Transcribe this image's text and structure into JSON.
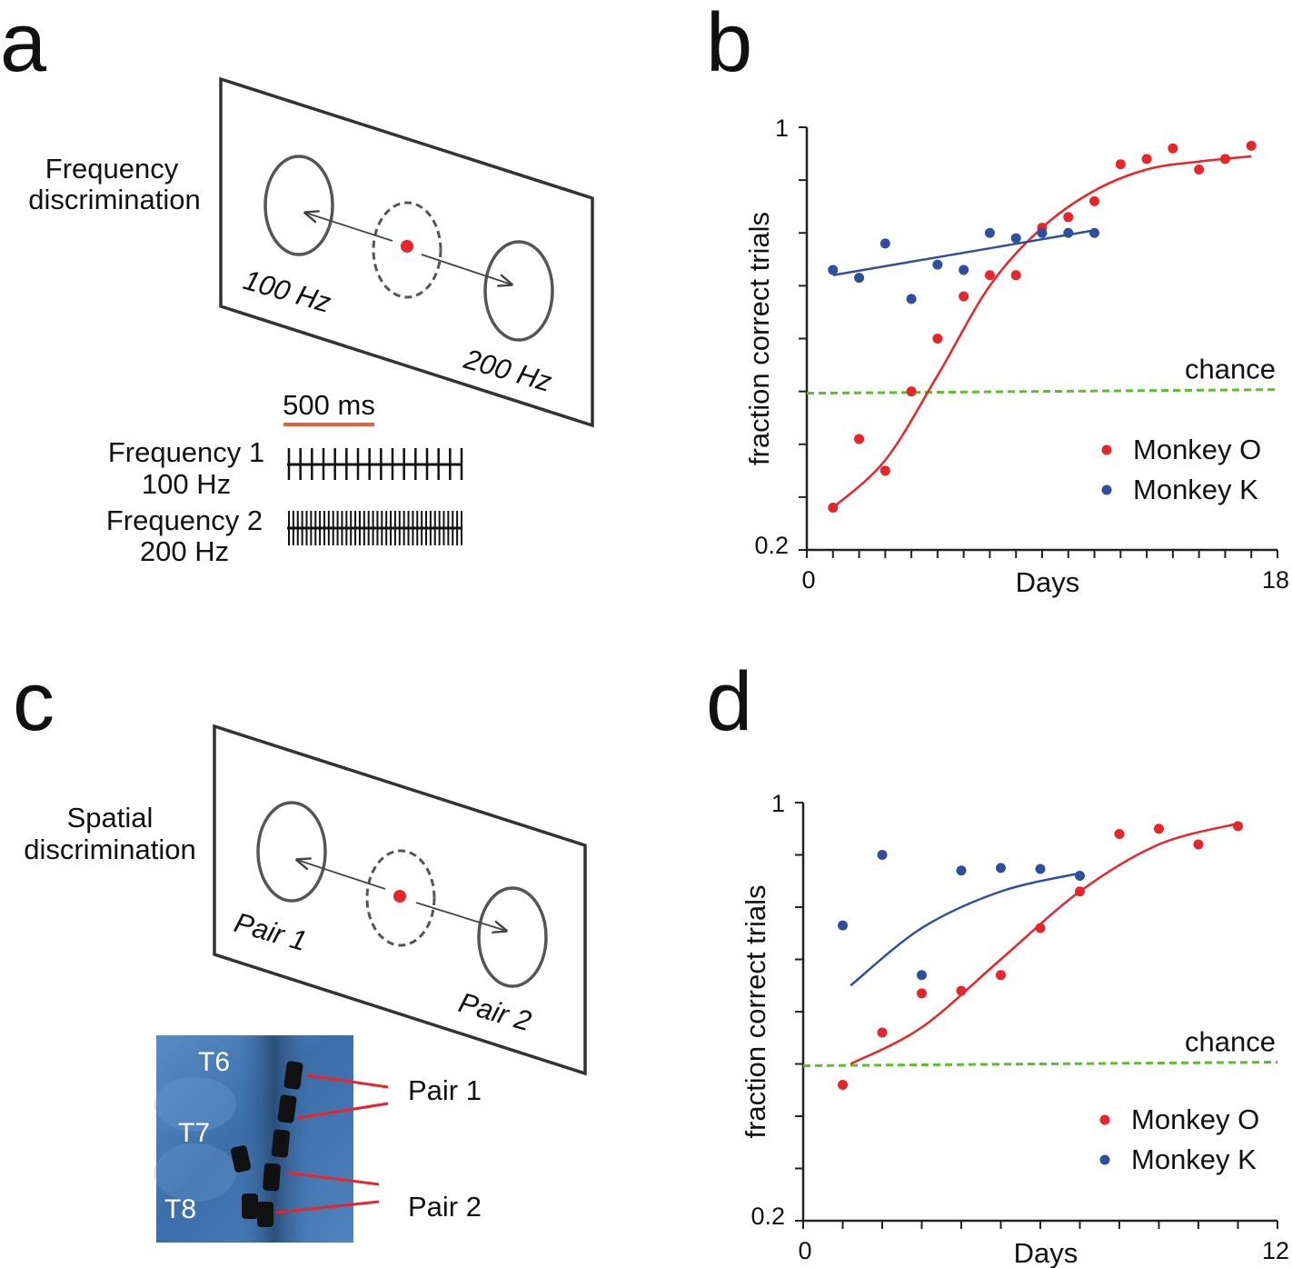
{
  "panels": {
    "a": {
      "letter": "a",
      "task_title_line1": "Frequency",
      "task_title_line2": "discrimination",
      "left_target": "100 Hz",
      "right_target": "200 Hz",
      "scale_bar": "500 ms",
      "train1_line1": "Frequency 1",
      "train1_line2": "100 Hz",
      "train2_line1": "Frequency 2",
      "train2_line2": "200 Hz"
    },
    "b": {
      "letter": "b"
    },
    "c": {
      "letter": "c",
      "task_title_line1": "Spatial",
      "task_title_line2": "discrimination",
      "left_target": "Pair 1",
      "right_target": "Pair 2",
      "xray_labels": [
        "T6",
        "T7",
        "T8"
      ],
      "xray_pair1": "Pair 1",
      "xray_pair2": "Pair 2"
    },
    "d": {
      "letter": "d"
    }
  },
  "colors": {
    "monkey_o": "#e8252a",
    "monkey_k": "#2e4f9f",
    "chance": "#5cbf2a",
    "scale_bar": "#e4603c",
    "fixation": "#e8252a"
  },
  "chart_data": [
    {
      "id": "b",
      "type": "scatter",
      "xlabel": "Days",
      "ylabel": "fraction correct trials",
      "xlim": [
        0,
        18
      ],
      "ylim": [
        0.2,
        1
      ],
      "x_tick_labels": [
        "0",
        "18"
      ],
      "y_tick_labels": [
        "0.2",
        "1"
      ],
      "chance_label": "chance",
      "chance_value": 0.5,
      "legend_position": "bottom-right",
      "series": [
        {
          "name": "Monkey O",
          "color": "#e8252a",
          "x": [
            1,
            2,
            3,
            4,
            5,
            6,
            7,
            8,
            9,
            10,
            11,
            12,
            13,
            14,
            15,
            16,
            17
          ],
          "y": [
            0.28,
            0.41,
            0.35,
            0.5,
            0.6,
            0.68,
            0.72,
            0.72,
            0.81,
            0.83,
            0.86,
            0.93,
            0.94,
            0.96,
            0.92,
            0.94,
            0.965
          ],
          "fit": [
            [
              1,
              0.28
            ],
            [
              3,
              0.37
            ],
            [
              5,
              0.53
            ],
            [
              7,
              0.7
            ],
            [
              9,
              0.81
            ],
            [
              11,
              0.88
            ],
            [
              13,
              0.92
            ],
            [
              15,
              0.935
            ],
            [
              17,
              0.945
            ]
          ]
        },
        {
          "name": "Monkey K",
          "color": "#2e4f9f",
          "x": [
            1,
            2,
            3,
            4,
            5,
            6,
            7,
            8,
            9,
            10,
            11
          ],
          "y": [
            0.73,
            0.715,
            0.78,
            0.675,
            0.74,
            0.73,
            0.8,
            0.79,
            0.8,
            0.8,
            0.8
          ],
          "fit": [
            [
              1,
              0.72
            ],
            [
              11,
              0.805
            ]
          ]
        }
      ]
    },
    {
      "id": "d",
      "type": "scatter",
      "xlabel": "Days",
      "ylabel": "fraction correct trials",
      "xlim": [
        0,
        12
      ],
      "ylim": [
        0.2,
        1
      ],
      "x_tick_labels": [
        "0",
        "12"
      ],
      "y_tick_labels": [
        "0.2",
        "1"
      ],
      "chance_label": "chance",
      "chance_value": 0.5,
      "legend_position": "bottom-right",
      "series": [
        {
          "name": "Monkey O",
          "color": "#e8252a",
          "x": [
            1,
            2,
            3,
            4,
            5,
            6,
            7,
            8,
            9,
            10,
            11
          ],
          "y": [
            0.46,
            0.56,
            0.635,
            0.64,
            0.67,
            0.76,
            0.83,
            0.94,
            0.95,
            0.92,
            0.955
          ],
          "fit": [
            [
              1.2,
              0.5
            ],
            [
              3,
              0.57
            ],
            [
              5,
              0.7
            ],
            [
              7,
              0.83
            ],
            [
              9,
              0.92
            ],
            [
              11,
              0.96
            ]
          ]
        },
        {
          "name": "Monkey K",
          "color": "#2e4f9f",
          "x": [
            1,
            2,
            3,
            4,
            5,
            6,
            7
          ],
          "y": [
            0.765,
            0.9,
            0.67,
            0.87,
            0.875,
            0.873,
            0.86
          ],
          "fit": [
            [
              1.2,
              0.65
            ],
            [
              3,
              0.76
            ],
            [
              5,
              0.83
            ],
            [
              7,
              0.865
            ]
          ]
        }
      ]
    }
  ]
}
